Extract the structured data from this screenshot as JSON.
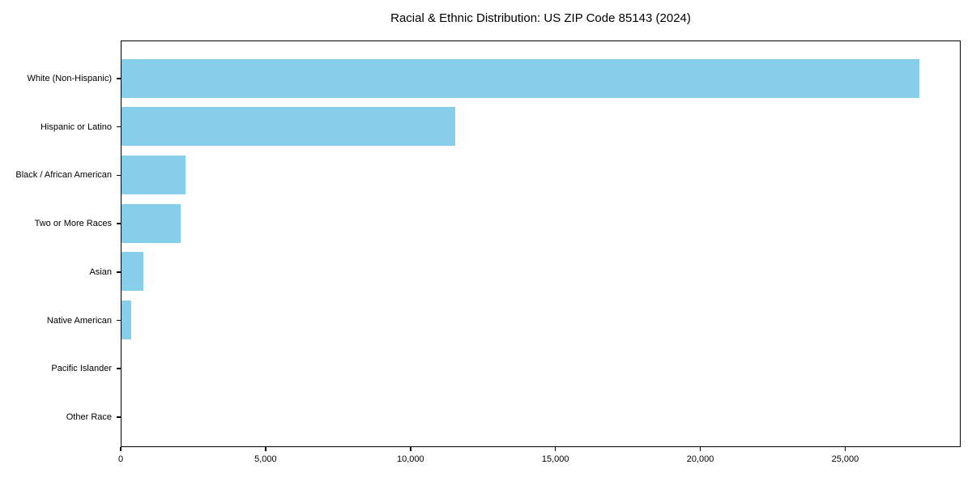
{
  "chart_data": {
    "type": "bar",
    "orientation": "horizontal",
    "title": "Racial & Ethnic Distribution: US ZIP Code 85143 (2024)",
    "categories": [
      "White (Non-Hispanic)",
      "Hispanic or Latino",
      "Black / African American",
      "Two or More Races",
      "Asian",
      "Native American",
      "Pacific Islander",
      "Other Race"
    ],
    "values": [
      27500,
      11500,
      2200,
      2050,
      750,
      340,
      0,
      0
    ],
    "xlabel": "",
    "ylabel": "",
    "xlim": [
      0,
      28900
    ],
    "xticks": [
      0,
      5000,
      10000,
      15000,
      20000,
      25000
    ],
    "xtick_labels": [
      "0",
      "5,000",
      "10,000",
      "15,000",
      "20,000",
      "25,000"
    ],
    "bar_color": "#87CEEB",
    "background_color": "#ffffff",
    "text_color": "#000000",
    "grid": false,
    "legend": null
  }
}
